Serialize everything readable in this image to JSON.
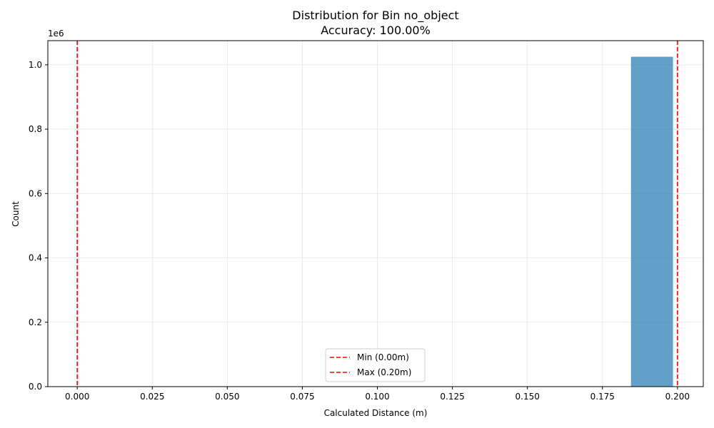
{
  "chart_data": {
    "type": "bar",
    "title": "Distribution for Bin no_object",
    "subtitle": "Accuracy: 100.00%",
    "xlabel": "Calculated Distance (m)",
    "ylabel": "Count",
    "y_offset_label": "1e6",
    "xlim": [
      -0.0098,
      0.2086
    ],
    "ylim": [
      0,
      1075000
    ],
    "x_ticks": [
      0.0,
      0.025,
      0.05,
      0.075,
      0.1,
      0.125,
      0.15,
      0.175,
      0.2
    ],
    "x_tick_labels": [
      "0.000",
      "0.025",
      "0.050",
      "0.075",
      "0.100",
      "0.125",
      "0.150",
      "0.175",
      "0.200"
    ],
    "y_ticks": [
      0,
      200000,
      400000,
      600000,
      800000,
      1000000
    ],
    "y_tick_labels": [
      "0.0",
      "0.2",
      "0.4",
      "0.6",
      "0.8",
      "1.0"
    ],
    "grid": true,
    "bars": [
      {
        "x_start": 0.1845,
        "x_end": 0.1985,
        "value": 1025000
      }
    ],
    "bar_color": "#1f77b4",
    "vlines": [
      {
        "label": "Min (0.00m)",
        "x": 0.0,
        "color": "#ff0000"
      },
      {
        "label": "Max (0.20m)",
        "x": 0.2,
        "color": "#ff0000"
      }
    ],
    "legend_position": "lower center"
  }
}
